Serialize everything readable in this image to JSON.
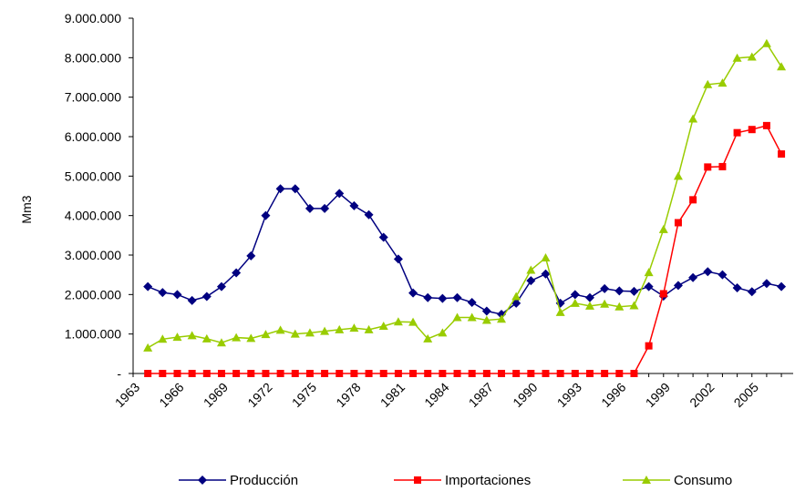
{
  "chart_data": {
    "type": "line",
    "ylabel": "Mm3",
    "xlabel": "",
    "title": "",
    "ylim": [
      0,
      9000000
    ],
    "y_ticks": [
      0,
      1000000,
      2000000,
      3000000,
      4000000,
      5000000,
      6000000,
      7000000,
      8000000,
      9000000
    ],
    "y_tick_labels": [
      "-",
      "1.000.000",
      "2.000.000",
      "3.000.000",
      "4.000.000",
      "5.000.000",
      "6.000.000",
      "7.000.000",
      "8.000.000",
      "9.000.000"
    ],
    "x_tick_labels": [
      "1963",
      "1966",
      "1969",
      "1972",
      "1975",
      "1978",
      "1981",
      "1984",
      "1987",
      "1990",
      "1993",
      "1996",
      "1999",
      "2002",
      "2005"
    ],
    "x": [
      1964,
      1965,
      1966,
      1967,
      1968,
      1969,
      1970,
      1971,
      1972,
      1973,
      1974,
      1975,
      1976,
      1977,
      1978,
      1979,
      1980,
      1981,
      1982,
      1983,
      1984,
      1985,
      1986,
      1987,
      1988,
      1989,
      1990,
      1991,
      1992,
      1993,
      1994,
      1995,
      1996,
      1997,
      1998,
      1999,
      2000,
      2001,
      2002,
      2003,
      2004,
      2005,
      2006,
      2007
    ],
    "grid": false,
    "legend_position": "bottom",
    "series": [
      {
        "name": "Producción",
        "color": "#000080",
        "marker": "diamond",
        "values": [
          2200000,
          2050000,
          2000000,
          1850000,
          1950000,
          2200000,
          2550000,
          2980000,
          4000000,
          4680000,
          4680000,
          4180000,
          4180000,
          4560000,
          4250000,
          4020000,
          3450000,
          2900000,
          2040000,
          1920000,
          1900000,
          1920000,
          1800000,
          1580000,
          1500000,
          1780000,
          2350000,
          2520000,
          1780000,
          2000000,
          1920000,
          2150000,
          2090000,
          2080000,
          2200000,
          1960000,
          2230000,
          2430000,
          2580000,
          2500000,
          2170000,
          2070000,
          2280000,
          2200000
        ]
      },
      {
        "name": "Importaciones",
        "color": "#ff0000",
        "marker": "square",
        "values": [
          0,
          0,
          0,
          0,
          0,
          0,
          0,
          0,
          0,
          0,
          0,
          0,
          0,
          0,
          0,
          0,
          0,
          0,
          0,
          0,
          0,
          0,
          0,
          0,
          0,
          0,
          0,
          0,
          0,
          0,
          0,
          0,
          0,
          0,
          700000,
          2020000,
          3820000,
          4400000,
          5230000,
          5240000,
          6100000,
          6180000,
          6280000,
          5560000
        ]
      },
      {
        "name": "Consumo",
        "color": "#99cc00",
        "marker": "triangle",
        "values": [
          650000,
          870000,
          920000,
          960000,
          880000,
          780000,
          910000,
          890000,
          990000,
          1100000,
          1000000,
          1030000,
          1070000,
          1110000,
          1150000,
          1110000,
          1200000,
          1310000,
          1300000,
          880000,
          1030000,
          1420000,
          1420000,
          1350000,
          1380000,
          1950000,
          2620000,
          2930000,
          1550000,
          1780000,
          1710000,
          1760000,
          1690000,
          1720000,
          2560000,
          3650000,
          5000000,
          6450000,
          7320000,
          7360000,
          7990000,
          8020000,
          8360000,
          7770000
        ]
      }
    ]
  }
}
